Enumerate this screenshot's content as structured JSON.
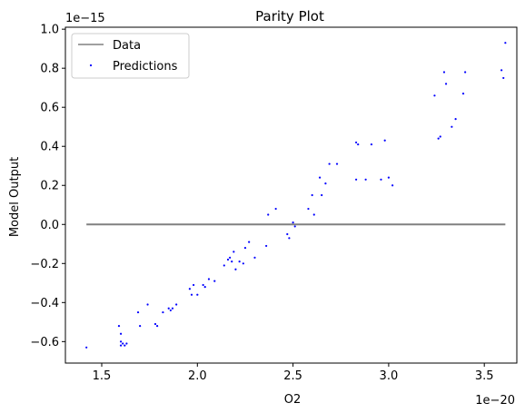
{
  "chart_data": {
    "type": "scatter",
    "title": "Parity Plot",
    "xlabel": "O2",
    "ylabel": "Model Output",
    "x_offset_text": "1e−20",
    "y_offset_text": "1e−15",
    "xlim": [
      1.31,
      3.67
    ],
    "ylim": [
      -0.71,
      1.01
    ],
    "xticks": [
      1.5,
      2.0,
      2.5,
      3.0,
      3.5
    ],
    "xtick_labels": [
      "1.5",
      "2.0",
      "2.5",
      "3.0",
      "3.5"
    ],
    "yticks": [
      -0.6,
      -0.4,
      -0.2,
      0.0,
      0.2,
      0.4,
      0.6,
      0.8,
      1.0
    ],
    "ytick_labels": [
      "−0.6",
      "−0.4",
      "−0.2",
      "0.0",
      "0.2",
      "0.4",
      "0.6",
      "0.8",
      "1.0"
    ],
    "grid": false,
    "legend_position": "top-left",
    "colors": {
      "data_line": "#808080",
      "predictions": "#0000ff"
    },
    "series": [
      {
        "name": "Data",
        "kind": "line",
        "x": [
          1.42,
          3.61
        ],
        "y": [
          0.0,
          0.0
        ]
      },
      {
        "name": "Predictions",
        "kind": "scatter",
        "x": [
          1.42,
          1.59,
          1.6,
          1.6,
          1.61,
          1.6,
          1.62,
          1.63,
          1.69,
          1.7,
          1.74,
          1.78,
          1.79,
          1.82,
          1.85,
          1.86,
          1.87,
          1.89,
          1.96,
          1.97,
          1.98,
          2.0,
          2.03,
          2.04,
          2.06,
          2.09,
          2.14,
          2.16,
          2.17,
          2.18,
          2.19,
          2.2,
          2.22,
          2.24,
          2.25,
          2.27,
          2.3,
          2.36,
          2.37,
          2.41,
          2.47,
          2.48,
          2.5,
          2.51,
          2.58,
          2.6,
          2.61,
          2.64,
          2.65,
          2.67,
          2.69,
          2.73,
          2.83,
          2.84,
          2.83,
          2.88,
          2.91,
          2.96,
          2.98,
          3.0,
          3.02,
          3.24,
          3.26,
          3.27,
          3.29,
          3.3,
          3.33,
          3.35,
          3.39,
          3.4,
          3.59,
          3.6,
          3.61
        ],
        "y": [
          -0.63,
          -0.52,
          -0.56,
          -0.6,
          -0.61,
          -0.62,
          -0.62,
          -0.61,
          -0.45,
          -0.52,
          -0.41,
          -0.51,
          -0.52,
          -0.45,
          -0.43,
          -0.44,
          -0.43,
          -0.41,
          -0.33,
          -0.36,
          -0.31,
          -0.36,
          -0.31,
          -0.32,
          -0.28,
          -0.29,
          -0.21,
          -0.18,
          -0.17,
          -0.19,
          -0.14,
          -0.23,
          -0.19,
          -0.2,
          -0.12,
          -0.09,
          -0.17,
          -0.11,
          0.05,
          0.08,
          -0.05,
          -0.07,
          0.01,
          -0.01,
          0.08,
          0.15,
          0.05,
          0.24,
          0.15,
          0.21,
          0.31,
          0.31,
          0.42,
          0.41,
          0.23,
          0.23,
          0.41,
          0.23,
          0.43,
          0.24,
          0.2,
          0.66,
          0.44,
          0.45,
          0.78,
          0.72,
          0.5,
          0.54,
          0.67,
          0.78,
          0.79,
          0.75,
          0.93
        ]
      }
    ]
  }
}
